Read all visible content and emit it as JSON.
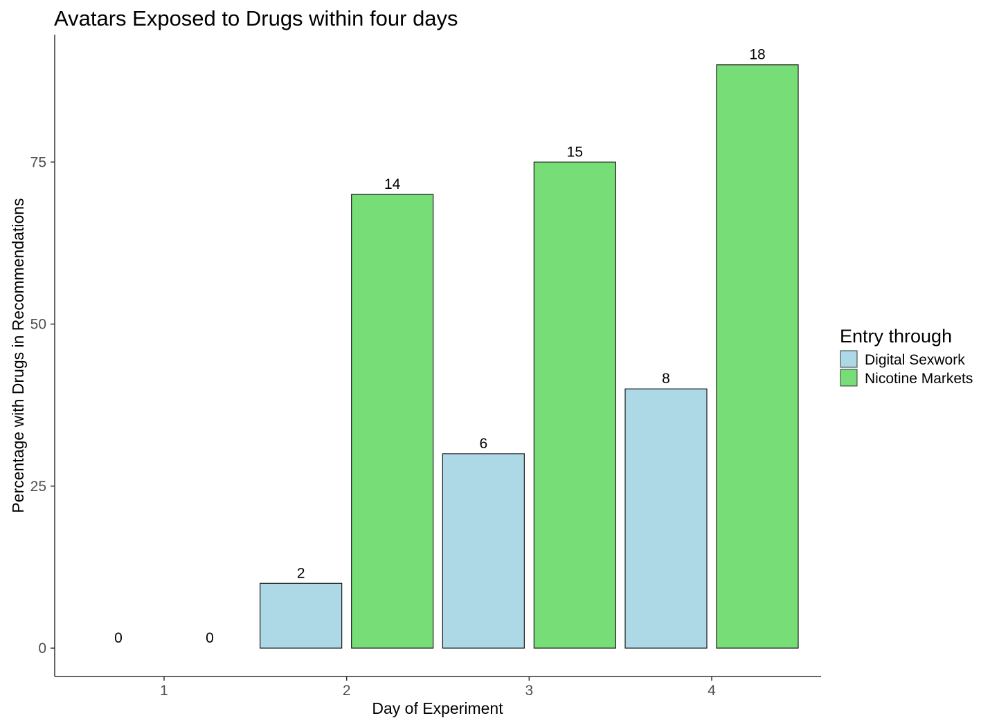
{
  "chart_data": {
    "type": "bar",
    "title": "Avatars Exposed to Drugs within four days",
    "xlabel": "Day of Experiment",
    "ylabel": "Percentage with Drugs in Recommendations",
    "categories": [
      "1",
      "2",
      "3",
      "4"
    ],
    "ylim": [
      0,
      90
    ],
    "yticks": [
      0,
      25,
      50,
      75
    ],
    "grid": false,
    "legend_title": "Entry through",
    "legend_position": "right",
    "series": [
      {
        "name": "Digital Sexwork",
        "color": "#add8e6",
        "values": [
          0,
          10,
          30,
          40
        ],
        "labels": [
          "0",
          "2",
          "6",
          "8"
        ]
      },
      {
        "name": "Nicotine Markets",
        "color": "#77dd77",
        "values": [
          0,
          70,
          75,
          90
        ],
        "labels": [
          "0",
          "14",
          "15",
          "18"
        ]
      }
    ]
  }
}
